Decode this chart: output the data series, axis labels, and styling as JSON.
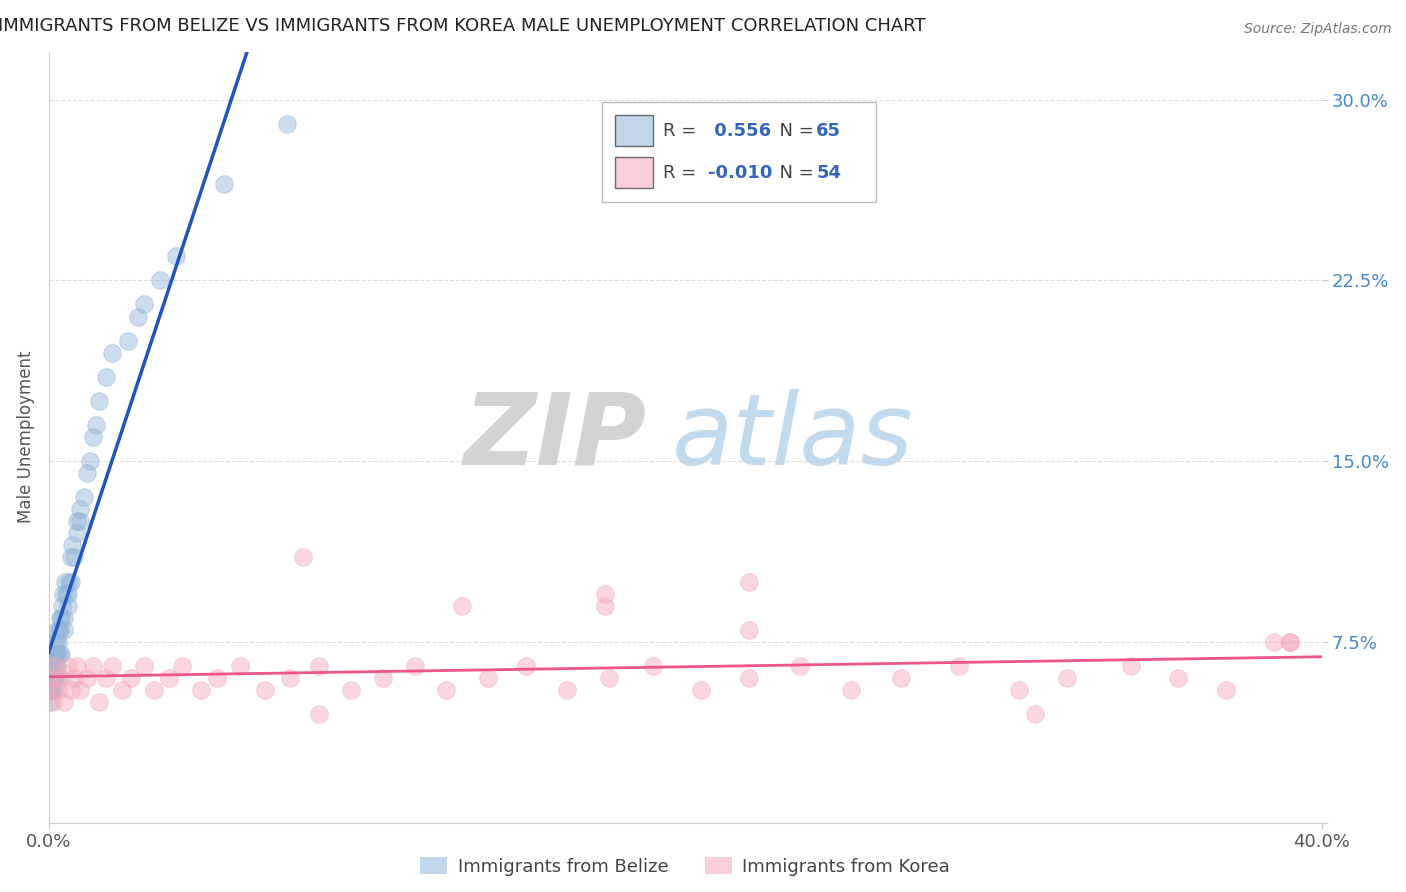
{
  "title": "IMMIGRANTS FROM BELIZE VS IMMIGRANTS FROM KOREA MALE UNEMPLOYMENT CORRELATION CHART",
  "source": "Source: ZipAtlas.com",
  "ylabel": "Male Unemployment",
  "xlim": [
    0.0,
    0.4
  ],
  "ylim": [
    0.0,
    0.32
  ],
  "yticks": [
    0.0,
    0.075,
    0.15,
    0.225,
    0.3
  ],
  "ytick_labels": [
    "",
    "7.5%",
    "15.0%",
    "22.5%",
    "30.0%"
  ],
  "belize_color": "#92B4D8",
  "korea_color": "#F4A7B9",
  "belize_R": 0.556,
  "belize_N": 65,
  "korea_R": -0.01,
  "korea_N": 54,
  "trend_blue": "#2255BB",
  "trend_pink": "#EE5588",
  "watermark_zip": "ZIP",
  "watermark_atlas": "atlas",
  "belize_scatter_x": [
    0.0002,
    0.0003,
    0.0004,
    0.0005,
    0.0006,
    0.0007,
    0.0008,
    0.0009,
    0.001,
    0.001,
    0.0012,
    0.0013,
    0.0014,
    0.0015,
    0.0016,
    0.0017,
    0.0018,
    0.0019,
    0.002,
    0.002,
    0.0022,
    0.0023,
    0.0025,
    0.0026,
    0.0028,
    0.003,
    0.003,
    0.0032,
    0.0034,
    0.0035,
    0.0037,
    0.004,
    0.004,
    0.0042,
    0.0045,
    0.005,
    0.005,
    0.0052,
    0.0055,
    0.006,
    0.006,
    0.0063,
    0.007,
    0.007,
    0.0075,
    0.008,
    0.009,
    0.009,
    0.01,
    0.01,
    0.011,
    0.012,
    0.013,
    0.014,
    0.015,
    0.016,
    0.018,
    0.02,
    0.025,
    0.028,
    0.03,
    0.035,
    0.04,
    0.055,
    0.075
  ],
  "belize_scatter_y": [
    0.06,
    0.055,
    0.065,
    0.05,
    0.06,
    0.055,
    0.07,
    0.065,
    0.06,
    0.055,
    0.065,
    0.06,
    0.07,
    0.055,
    0.065,
    0.06,
    0.075,
    0.07,
    0.06,
    0.065,
    0.07,
    0.075,
    0.065,
    0.08,
    0.07,
    0.06,
    0.075,
    0.08,
    0.07,
    0.085,
    0.08,
    0.07,
    0.085,
    0.09,
    0.095,
    0.08,
    0.085,
    0.1,
    0.095,
    0.09,
    0.095,
    0.1,
    0.1,
    0.11,
    0.115,
    0.11,
    0.12,
    0.125,
    0.13,
    0.125,
    0.135,
    0.145,
    0.15,
    0.16,
    0.165,
    0.175,
    0.185,
    0.195,
    0.2,
    0.21,
    0.215,
    0.225,
    0.235,
    0.265,
    0.29
  ],
  "korea_scatter_x": [
    0.0005,
    0.001,
    0.0015,
    0.002,
    0.003,
    0.004,
    0.005,
    0.006,
    0.007,
    0.008,
    0.009,
    0.01,
    0.012,
    0.014,
    0.016,
    0.018,
    0.02,
    0.023,
    0.026,
    0.03,
    0.033,
    0.038,
    0.042,
    0.048,
    0.053,
    0.06,
    0.068,
    0.076,
    0.085,
    0.095,
    0.105,
    0.115,
    0.125,
    0.138,
    0.15,
    0.163,
    0.176,
    0.19,
    0.205,
    0.22,
    0.236,
    0.252,
    0.268,
    0.286,
    0.305,
    0.32,
    0.34,
    0.355,
    0.37,
    0.385,
    0.175,
    0.085,
    0.22,
    0.39
  ],
  "korea_scatter_y": [
    0.055,
    0.06,
    0.05,
    0.065,
    0.055,
    0.06,
    0.05,
    0.065,
    0.055,
    0.06,
    0.065,
    0.055,
    0.06,
    0.065,
    0.05,
    0.06,
    0.065,
    0.055,
    0.06,
    0.065,
    0.055,
    0.06,
    0.065,
    0.055,
    0.06,
    0.065,
    0.055,
    0.06,
    0.065,
    0.055,
    0.06,
    0.065,
    0.055,
    0.06,
    0.065,
    0.055,
    0.06,
    0.065,
    0.055,
    0.06,
    0.065,
    0.055,
    0.06,
    0.065,
    0.055,
    0.06,
    0.065,
    0.06,
    0.055,
    0.075,
    0.09,
    0.045,
    0.08,
    0.075
  ],
  "korea_extra_x": [
    0.08,
    0.13,
    0.175,
    0.22,
    0.31,
    0.39
  ],
  "korea_extra_y": [
    0.11,
    0.09,
    0.095,
    0.1,
    0.045,
    0.075
  ],
  "belize_trend_x": [
    0.0,
    0.075
  ],
  "belize_trend_slope": 3.5,
  "belize_trend_intercept": 0.045,
  "korea_trend_y": 0.065
}
